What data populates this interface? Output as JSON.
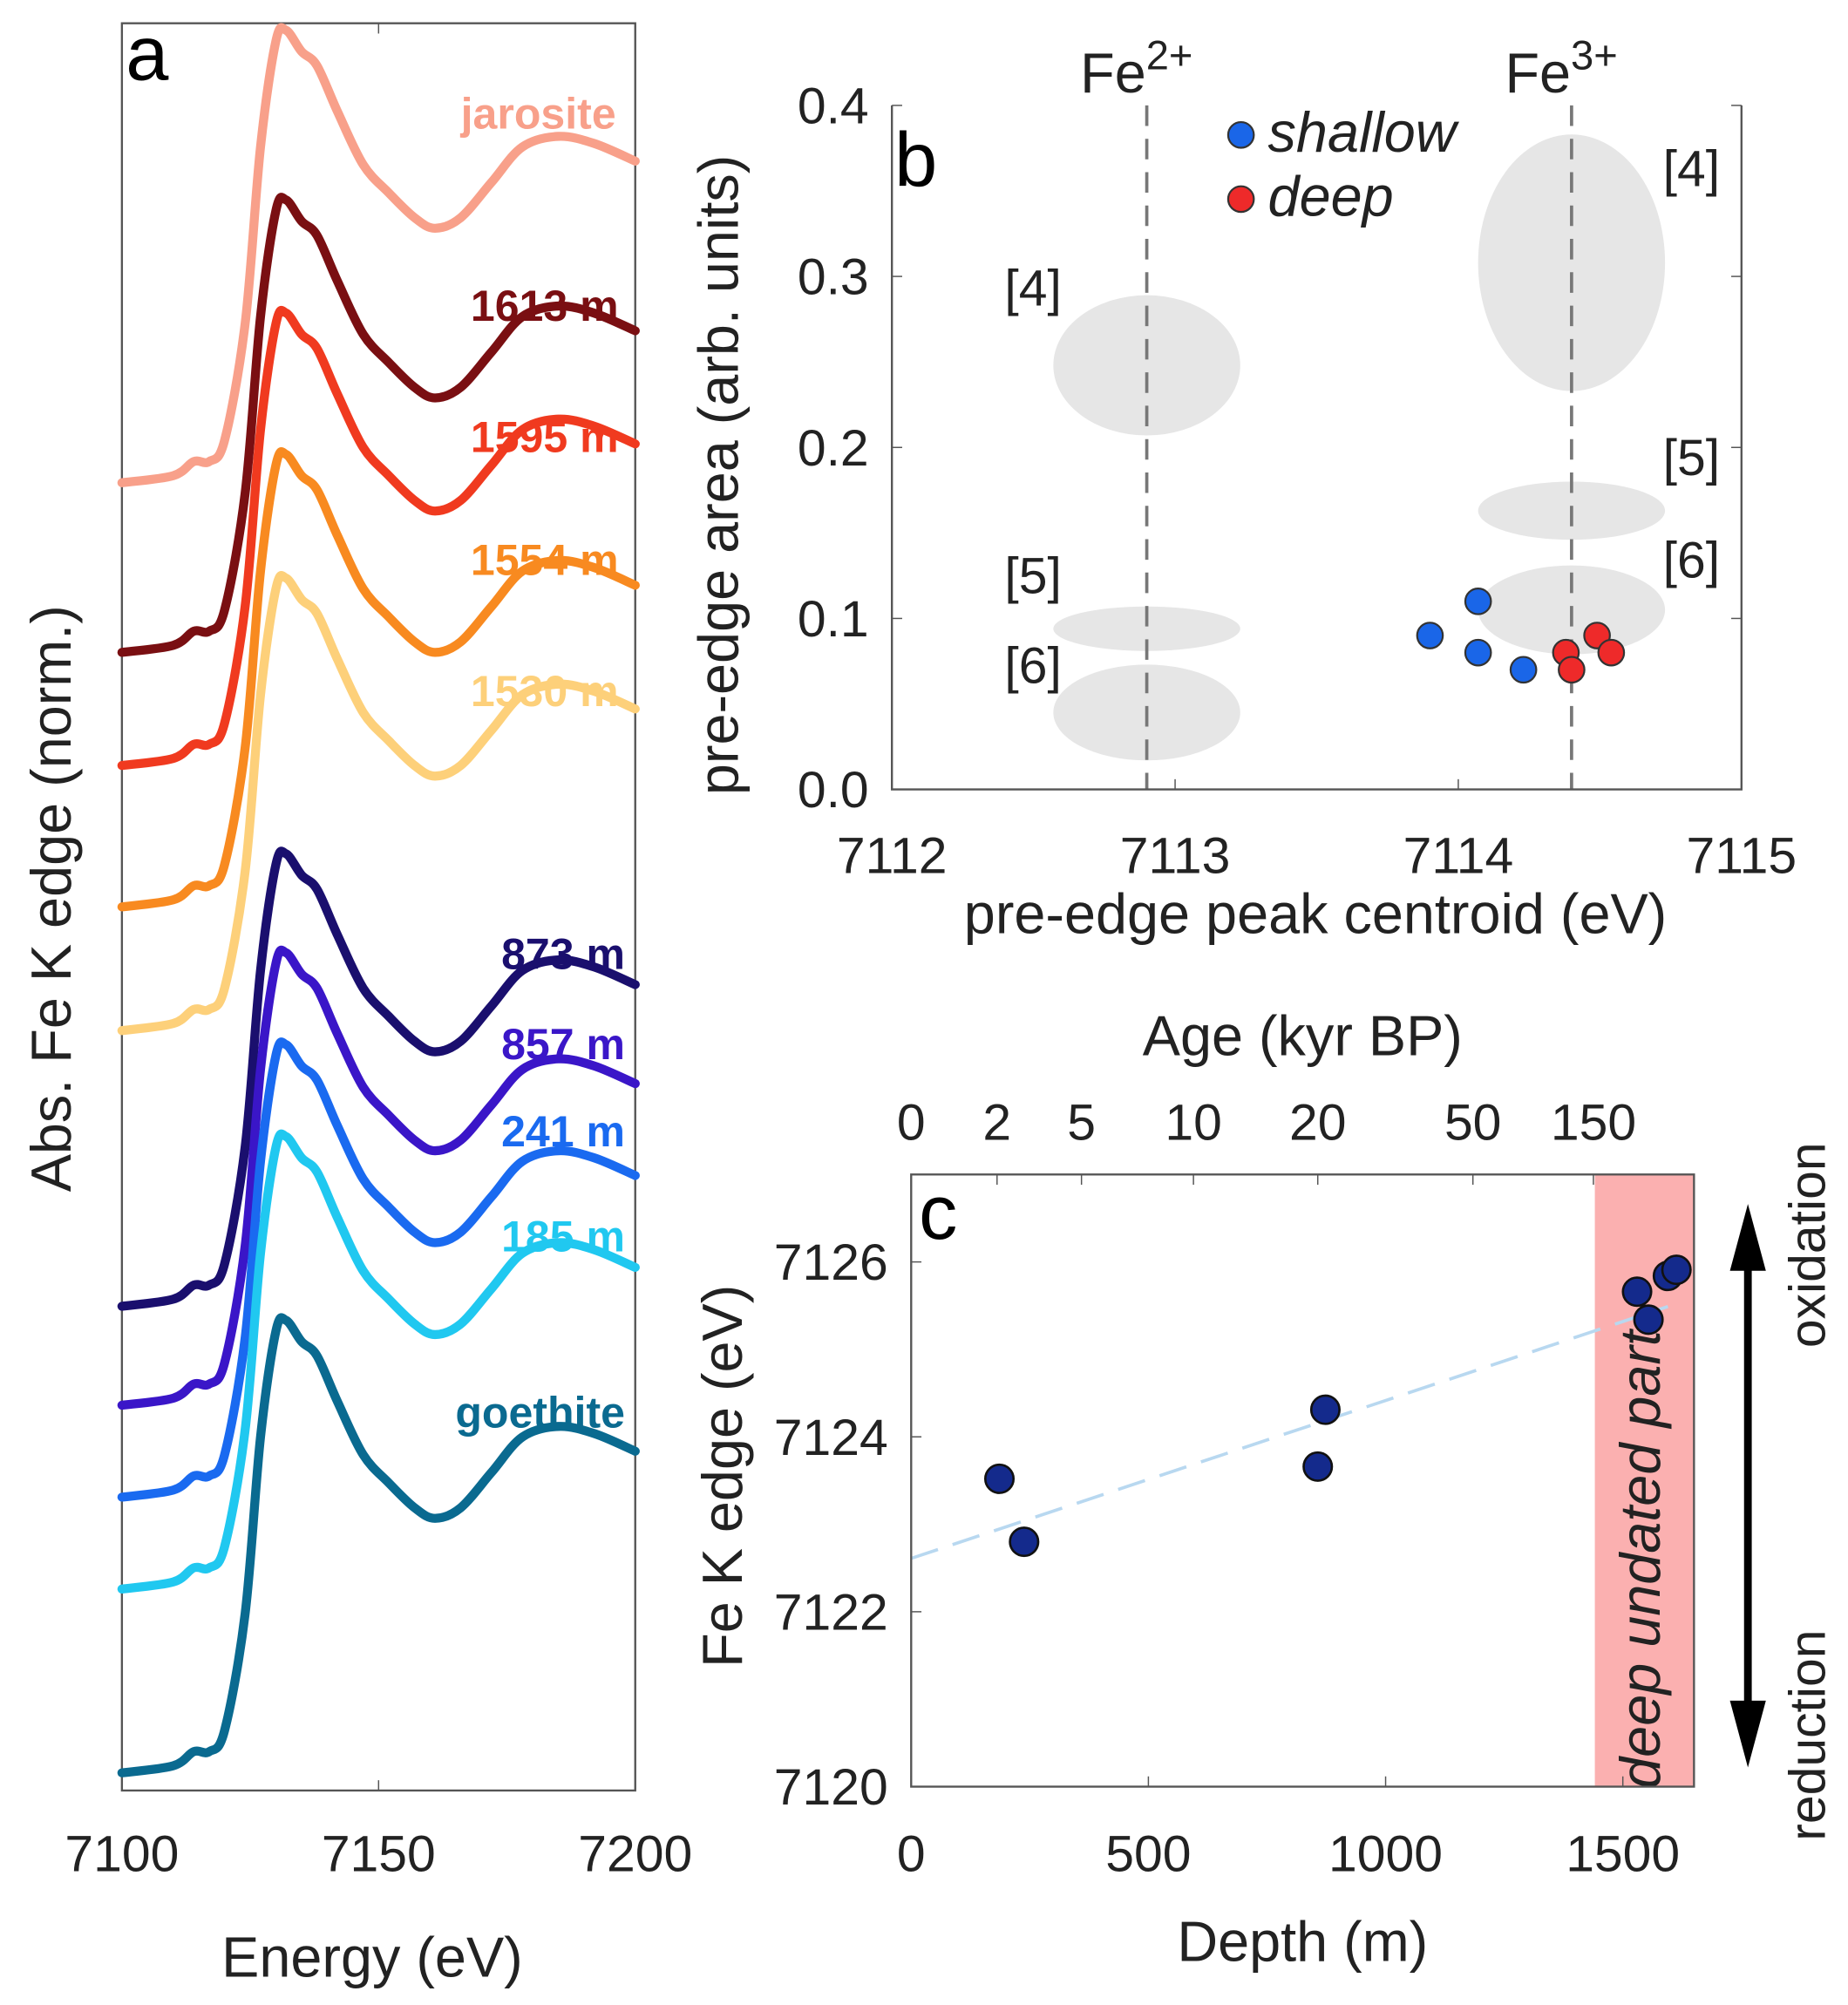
{
  "chart_data": [
    {
      "panel": "a",
      "type": "line",
      "xlabel": "Energy (eV)",
      "ylabel": "Abs. Fe K edge (norm.)",
      "xlim": [
        7100,
        7200
      ],
      "xticks": [
        "7100",
        "7150",
        "7200"
      ],
      "ylim": [
        0,
        5
      ],
      "y_ticks_shown": false,
      "x": [
        7100,
        7110,
        7114,
        7117,
        7120,
        7124,
        7127,
        7130,
        7132,
        7135,
        7138,
        7142,
        7147,
        7152,
        7157,
        7161,
        7166,
        7172,
        7178,
        7185,
        7192,
        7200
      ],
      "series": [
        {
          "name": "jarosite",
          "color": "#f8a08a",
          "values": [
            3.7,
            3.72,
            3.76,
            3.76,
            3.82,
            4.15,
            4.65,
            4.95,
            4.98,
            4.92,
            4.88,
            4.75,
            4.6,
            4.52,
            4.45,
            4.42,
            4.45,
            4.55,
            4.65,
            4.68,
            4.66,
            4.61
          ]
        },
        {
          "name": "1613 m",
          "color": "#7a0f12",
          "values": [
            3.22,
            3.24,
            3.28,
            3.28,
            3.34,
            3.67,
            4.17,
            4.47,
            4.5,
            4.44,
            4.4,
            4.27,
            4.12,
            4.04,
            3.97,
            3.94,
            3.97,
            4.07,
            4.17,
            4.2,
            4.18,
            4.13
          ]
        },
        {
          "name": "1595 m",
          "color": "#f03a1f",
          "values": [
            2.9,
            2.92,
            2.96,
            2.96,
            3.02,
            3.35,
            3.85,
            4.15,
            4.18,
            4.12,
            4.08,
            3.95,
            3.8,
            3.72,
            3.65,
            3.62,
            3.65,
            3.75,
            3.85,
            3.88,
            3.86,
            3.81
          ]
        },
        {
          "name": "1554 m",
          "color": "#f88a20",
          "values": [
            2.5,
            2.52,
            2.56,
            2.56,
            2.62,
            2.95,
            3.45,
            3.75,
            3.78,
            3.72,
            3.68,
            3.55,
            3.4,
            3.32,
            3.25,
            3.22,
            3.25,
            3.35,
            3.45,
            3.48,
            3.46,
            3.41
          ]
        },
        {
          "name": "1530 m",
          "color": "#fdd07a",
          "values": [
            2.15,
            2.17,
            2.21,
            2.21,
            2.27,
            2.6,
            3.1,
            3.4,
            3.43,
            3.37,
            3.33,
            3.2,
            3.05,
            2.97,
            2.9,
            2.87,
            2.9,
            3.0,
            3.1,
            3.13,
            3.11,
            3.06
          ]
        },
        {
          "name": "873 m",
          "color": "#1a0f6e",
          "values": [
            1.37,
            1.39,
            1.43,
            1.43,
            1.49,
            1.82,
            2.32,
            2.62,
            2.65,
            2.59,
            2.55,
            2.42,
            2.27,
            2.19,
            2.12,
            2.09,
            2.12,
            2.22,
            2.32,
            2.35,
            2.33,
            2.28
          ]
        },
        {
          "name": "857 m",
          "color": "#3a16c8",
          "values": [
            1.09,
            1.11,
            1.15,
            1.15,
            1.21,
            1.54,
            2.04,
            2.34,
            2.37,
            2.31,
            2.27,
            2.14,
            1.99,
            1.91,
            1.84,
            1.81,
            1.84,
            1.94,
            2.04,
            2.07,
            2.05,
            2.0
          ]
        },
        {
          "name": "241 m",
          "color": "#1a6af0",
          "values": [
            0.83,
            0.85,
            0.89,
            0.89,
            0.95,
            1.28,
            1.78,
            2.08,
            2.11,
            2.05,
            2.01,
            1.88,
            1.73,
            1.65,
            1.58,
            1.55,
            1.58,
            1.68,
            1.78,
            1.81,
            1.79,
            1.74
          ]
        },
        {
          "name": "185 m",
          "color": "#20c8f0",
          "values": [
            0.57,
            0.59,
            0.63,
            0.63,
            0.69,
            1.02,
            1.52,
            1.82,
            1.85,
            1.79,
            1.75,
            1.62,
            1.47,
            1.39,
            1.32,
            1.29,
            1.32,
            1.42,
            1.52,
            1.55,
            1.53,
            1.48
          ]
        },
        {
          "name": "goethite",
          "color": "#0a6a90",
          "values": [
            0.05,
            0.07,
            0.11,
            0.11,
            0.17,
            0.5,
            1.0,
            1.3,
            1.33,
            1.27,
            1.23,
            1.1,
            0.95,
            0.87,
            0.8,
            0.77,
            0.8,
            0.9,
            1.0,
            1.03,
            1.01,
            0.96
          ]
        }
      ]
    },
    {
      "panel": "b",
      "type": "scatter",
      "xlabel": "pre-edge peak centroid (eV)",
      "ylabel": "pre-edge area (arb. units)",
      "xlim": [
        7112,
        7115
      ],
      "ylim": [
        0,
        0.4
      ],
      "xticks": [
        "7112",
        "7113",
        "7114",
        "7115"
      ],
      "yticks": [
        "0.0",
        "0.1",
        "0.2",
        "0.3",
        "0.4"
      ],
      "legend_placement": "top-center",
      "reference_lines": [
        {
          "label": "Fe",
          "sup": "2+",
          "x": 7112.9
        },
        {
          "label": "Fe",
          "sup": "3+",
          "x": 7114.4
        }
      ],
      "reference_regions": [
        {
          "label": "[4]",
          "x": 7112.9,
          "y": 0.248,
          "dx": 0.33,
          "dy": 0.041
        },
        {
          "label": "[5]",
          "x": 7112.9,
          "y": 0.094,
          "dx": 0.33,
          "dy": 0.013
        },
        {
          "label": "[6]",
          "x": 7112.9,
          "y": 0.045,
          "dx": 0.33,
          "dy": 0.028
        },
        {
          "label": "[4]",
          "x": 7114.4,
          "y": 0.308,
          "dx": 0.33,
          "dy": 0.075
        },
        {
          "label": "[5]",
          "x": 7114.4,
          "y": 0.163,
          "dx": 0.33,
          "dy": 0.017
        },
        {
          "label": "[6]",
          "x": 7114.4,
          "y": 0.105,
          "dx": 0.33,
          "dy": 0.026
        }
      ],
      "region_color": "#e6e6e6",
      "series": [
        {
          "name": "shallow",
          "color": "#1a66e8",
          "points": [
            [
              7113.9,
              0.09
            ],
            [
              7114.07,
              0.11
            ],
            [
              7114.07,
              0.08
            ],
            [
              7114.23,
              0.07
            ]
          ]
        },
        {
          "name": "deep",
          "color": "#ee2a2a",
          "points": [
            [
              7114.38,
              0.08
            ],
            [
              7114.49,
              0.09
            ],
            [
              7114.54,
              0.08
            ],
            [
              7114.4,
              0.07
            ]
          ]
        }
      ]
    },
    {
      "panel": "c",
      "type": "scatter",
      "xlabel": "Depth (m)",
      "ylabel": "Fe K edge (eV)",
      "top_xlabel": "Age (kyr BP)",
      "xlim": [
        0,
        1650
      ],
      "ylim": [
        7120,
        7127
      ],
      "xticks": [
        "0",
        "500",
        "1000",
        "1500"
      ],
      "yticks": [
        "7120",
        "7122",
        "7124",
        "7126"
      ],
      "top_ticks": [
        {
          "label": "0",
          "depth": 0
        },
        {
          "label": "2",
          "depth": 181
        },
        {
          "label": "5",
          "depth": 359
        },
        {
          "label": "10",
          "depth": 595
        },
        {
          "label": "20",
          "depth": 857
        },
        {
          "label": "50",
          "depth": 1184
        },
        {
          "label": "150",
          "depth": 1438
        }
      ],
      "shaded_region": {
        "label": "deep undated part",
        "from": 1441,
        "to": 1650,
        "color": "#fbb0b0",
        "text_color": "#c0282a"
      },
      "point_color": "#142a8c",
      "points": [
        [
          186,
          7123.52
        ],
        [
          238,
          7122.8
        ],
        [
          857,
          7123.66
        ],
        [
          873,
          7124.31
        ],
        [
          1530,
          7125.66
        ],
        [
          1554,
          7125.34
        ],
        [
          1595,
          7125.84
        ],
        [
          1613,
          7125.91
        ]
      ],
      "trend": {
        "from": [
          0,
          7122.61
        ],
        "to": [
          1595,
          7125.49
        ],
        "color": "#b8d8f0",
        "style": "dashed"
      },
      "arrow_labels": {
        "up": "oxidation",
        "down": "reduction"
      }
    }
  ],
  "panel_letters": [
    "a",
    "b",
    "c"
  ]
}
